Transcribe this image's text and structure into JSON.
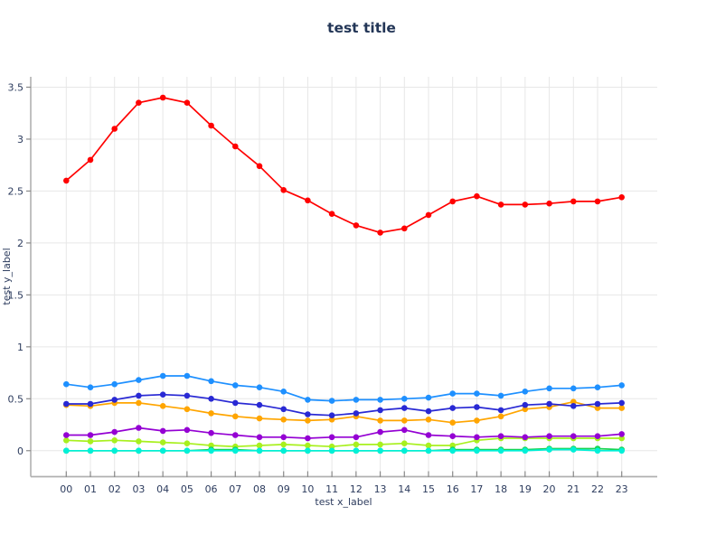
{
  "chart_data": {
    "type": "line",
    "title": "test title",
    "xlabel": "test x_label",
    "ylabel": "test y_label",
    "categories": [
      "00",
      "01",
      "02",
      "03",
      "04",
      "05",
      "06",
      "07",
      "08",
      "09",
      "10",
      "11",
      "12",
      "13",
      "14",
      "15",
      "16",
      "17",
      "18",
      "19",
      "20",
      "21",
      "22",
      "23"
    ],
    "y_ticks": [
      "0",
      "0.5",
      "1",
      "1.5",
      "2",
      "2.5",
      "3",
      "3.5"
    ],
    "ylim": [
      -0.25,
      3.6
    ],
    "grid": true,
    "legend_position": "none",
    "title_color": "#233657",
    "text_color": "#2d3c5e",
    "grid_color": "#e7e7e7",
    "spine_color": "#b0b0b0",
    "tick_color": "#8a8a8a",
    "series": [
      {
        "name": "red",
        "color": "#ff0000",
        "values": [
          2.6,
          2.8,
          3.1,
          3.35,
          3.4,
          3.35,
          3.13,
          2.93,
          2.74,
          2.51,
          2.41,
          2.28,
          2.17,
          2.1,
          2.14,
          2.27,
          2.4,
          2.45,
          2.37,
          2.37,
          2.38,
          2.4,
          2.4,
          2.44
        ]
      },
      {
        "name": "dodger-blue",
        "color": "#1e90ff",
        "values": [
          0.64,
          0.61,
          0.64,
          0.68,
          0.72,
          0.72,
          0.67,
          0.63,
          0.61,
          0.57,
          0.49,
          0.48,
          0.49,
          0.49,
          0.5,
          0.51,
          0.55,
          0.55,
          0.53,
          0.57,
          0.6,
          0.6,
          0.61,
          0.63
        ]
      },
      {
        "name": "orange",
        "color": "#ffa500",
        "values": [
          0.44,
          0.43,
          0.46,
          0.46,
          0.43,
          0.4,
          0.36,
          0.33,
          0.31,
          0.3,
          0.29,
          0.3,
          0.33,
          0.29,
          0.29,
          0.3,
          0.27,
          0.29,
          0.33,
          0.4,
          0.42,
          0.47,
          0.41,
          0.41
        ]
      },
      {
        "name": "royal-blue",
        "color": "#2929d4",
        "values": [
          0.45,
          0.45,
          0.49,
          0.53,
          0.54,
          0.53,
          0.5,
          0.46,
          0.44,
          0.4,
          0.35,
          0.34,
          0.36,
          0.39,
          0.41,
          0.38,
          0.41,
          0.42,
          0.39,
          0.44,
          0.45,
          0.43,
          0.45,
          0.46
        ]
      },
      {
        "name": "green-yellow",
        "color": "#a8f01e",
        "values": [
          0.1,
          0.09,
          0.1,
          0.09,
          0.08,
          0.07,
          0.05,
          0.04,
          0.05,
          0.06,
          0.05,
          0.04,
          0.06,
          0.06,
          0.07,
          0.05,
          0.05,
          0.1,
          0.12,
          0.12,
          0.12,
          0.12,
          0.12,
          0.12
        ]
      },
      {
        "name": "dark-violet",
        "color": "#9400d3",
        "values": [
          0.15,
          0.15,
          0.18,
          0.22,
          0.19,
          0.2,
          0.17,
          0.15,
          0.13,
          0.13,
          0.12,
          0.13,
          0.13,
          0.18,
          0.2,
          0.15,
          0.14,
          0.13,
          0.14,
          0.13,
          0.14,
          0.14,
          0.14,
          0.16
        ]
      },
      {
        "name": "green",
        "color": "#17d452",
        "values": [
          0.0,
          0.0,
          0.0,
          0.0,
          0.0,
          0.0,
          0.01,
          0.01,
          0.0,
          0.0,
          0.0,
          0.0,
          0.0,
          0.0,
          0.0,
          0.0,
          0.01,
          0.01,
          0.01,
          0.01,
          0.02,
          0.02,
          0.02,
          0.01
        ]
      },
      {
        "name": "cyan",
        "color": "#00f0d8",
        "values": [
          0.0,
          0.0,
          0.0,
          0.0,
          0.0,
          0.0,
          0.0,
          0.0,
          0.0,
          0.0,
          0.0,
          0.0,
          0.0,
          0.0,
          0.0,
          0.0,
          0.0,
          0.0,
          0.0,
          0.0,
          0.01,
          0.01,
          0.0,
          0.0
        ]
      }
    ]
  }
}
